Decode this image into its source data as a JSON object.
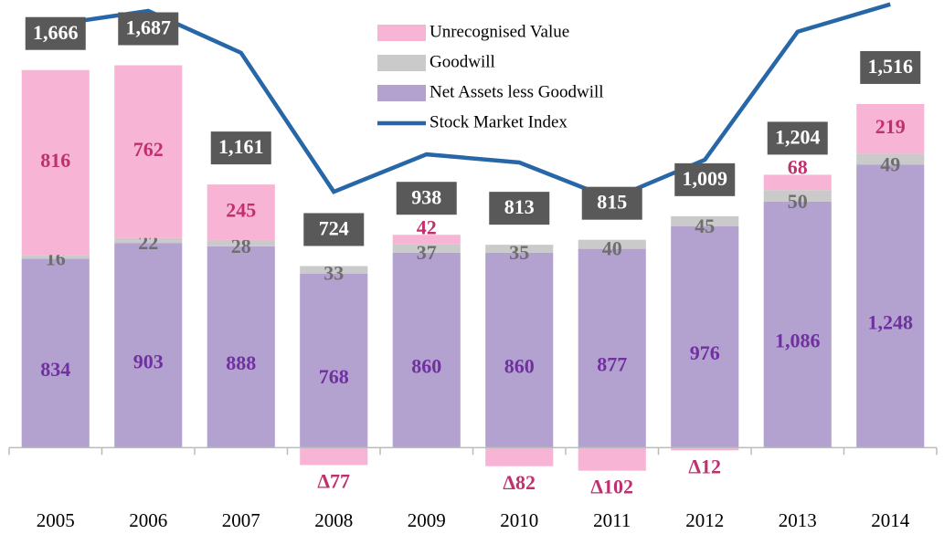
{
  "chart_data": {
    "type": "bar",
    "categories": [
      "2005",
      "2006",
      "2007",
      "2008",
      "2009",
      "2010",
      "2011",
      "2012",
      "2013",
      "2014"
    ],
    "series": [
      {
        "name": "Net Assets less Goodwill",
        "color": "#b3a2cf",
        "label_color": "#7030a0",
        "values": [
          834,
          903,
          888,
          768,
          860,
          860,
          877,
          976,
          1086,
          1248
        ],
        "value_labels": [
          "834",
          "903",
          "888",
          "768",
          "860",
          "860",
          "877",
          "976",
          "1,086",
          "1,248"
        ]
      },
      {
        "name": "Goodwill",
        "color": "#cacaca",
        "label_color": "#6e6e6e",
        "values": [
          16,
          22,
          28,
          33,
          37,
          35,
          40,
          45,
          50,
          49
        ],
        "value_labels": [
          "16",
          "22",
          "28",
          "33",
          "37",
          "35",
          "40",
          "45",
          "50",
          "49"
        ]
      },
      {
        "name": "Unrecognised Value",
        "color": "#f8b4d4",
        "label_color": "#c0306f",
        "values": [
          816,
          762,
          245,
          -77,
          42,
          -82,
          -102,
          -12,
          68,
          219
        ],
        "value_labels": [
          "816",
          "762",
          "245",
          "∆77",
          "42",
          "∆82",
          "∆102",
          "∆12",
          "68",
          "219"
        ]
      },
      {
        "name": "Stock Market Index",
        "color": "#2767a8",
        "type": "line",
        "values": [
          1867,
          1927,
          1742,
          1129,
          1294,
          1258,
          1097,
          1270,
          1835,
          1956
        ]
      }
    ],
    "totals": {
      "values": [
        1666,
        1687,
        1161,
        724,
        938,
        813,
        815,
        1009,
        1204,
        1516
      ],
      "value_labels": [
        "1,666",
        "1,687",
        "1,161",
        "724",
        "938",
        "813",
        "815",
        "1,009",
        "1,204",
        "1,516"
      ],
      "color": "#595959"
    },
    "ylim": [
      -200,
      1975
    ],
    "legend": "top"
  }
}
